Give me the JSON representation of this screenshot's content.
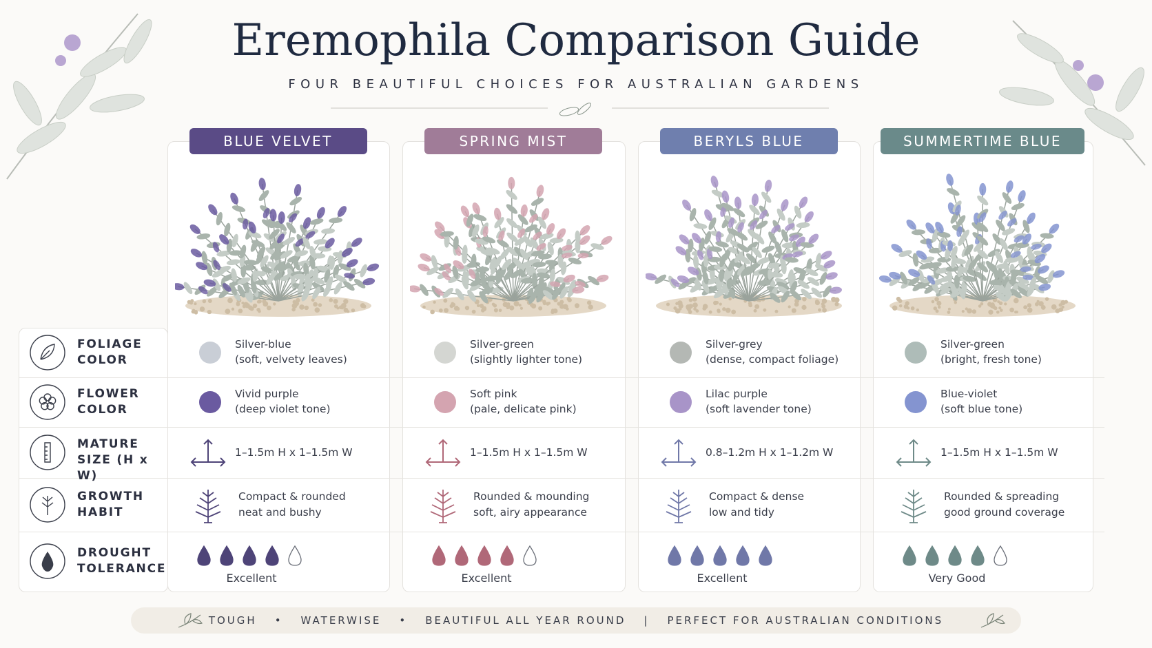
{
  "header": {
    "title": "Eremophila Comparison Guide",
    "subtitle": "FOUR BEAUTIFUL CHOICES FOR AUSTRALIAN GARDENS"
  },
  "row_labels": [
    "FOLIAGE COLOR",
    "FLOWER COLOR",
    "MATURE SIZE (H x W)",
    "GROWTH HABIT",
    "DROUGHT TOLERANCE"
  ],
  "varieties": [
    {
      "name": "BLUE VELVET",
      "color": "#5a4b86",
      "foliage": {
        "label": "Silver-blue",
        "note": "(soft, velvety leaves)",
        "color": "#c9ced6"
      },
      "flower": {
        "label": "Vivid purple",
        "note": "(deep violet tone)",
        "color": "#6a5aa0"
      },
      "size": "1–1.5m H x 1–1.5m W",
      "habit": [
        "Compact & rounded",
        "neat and bushy"
      ],
      "drought": {
        "rating": "Excellent",
        "drops": 4,
        "max": 5,
        "color": "#4e4478"
      }
    },
    {
      "name": "SPRING MIST",
      "color": "#a07c98",
      "foliage": {
        "label": "Silver-green",
        "note": "(slightly lighter tone)",
        "color": "#d4d6d2"
      },
      "flower": {
        "label": "Soft pink",
        "note": "(pale, delicate pink)",
        "color": "#d4a4b0"
      },
      "size": "1–1.5m H x 1–1.5m W",
      "habit": [
        "Rounded & mounding",
        "soft, airy appearance"
      ],
      "drought": {
        "rating": "Excellent",
        "drops": 4,
        "max": 5,
        "color": "#b06878"
      }
    },
    {
      "name": "BERYLS BLUE",
      "color": "#6f7fae",
      "foliage": {
        "label": "Silver-grey",
        "note": "(dense, compact foliage)",
        "color": "#b4b8b4"
      },
      "flower": {
        "label": "Lilac purple",
        "note": "(soft lavender tone)",
        "color": "#a894c8"
      },
      "size": "0.8–1.2m H x 1–1.2m W",
      "habit": [
        "Compact & dense",
        "low and tidy"
      ],
      "drought": {
        "rating": "Excellent",
        "drops": 5,
        "max": 5,
        "color": "#7078a8"
      }
    },
    {
      "name": "SUMMERTIME BLUE",
      "color": "#6a8a8a",
      "foliage": {
        "label": "Silver-green",
        "note": "(bright, fresh tone)",
        "color": "#aebcb8"
      },
      "flower": {
        "label": "Blue-violet",
        "note": "(soft blue tone)",
        "color": "#8494d0"
      },
      "size": "1–1.5m H x 1–1.5m W",
      "habit": [
        "Rounded & spreading",
        "good ground coverage"
      ],
      "drought": {
        "rating": "Very Good",
        "drops": 4,
        "max": 5,
        "color": "#6e8a88"
      }
    }
  ],
  "footer": {
    "points": [
      "TOUGH",
      "WATERWISE",
      "BEAUTIFUL ALL YEAR ROUND"
    ],
    "tagline": "PERFECT FOR AUSTRALIAN CONDITIONS"
  }
}
